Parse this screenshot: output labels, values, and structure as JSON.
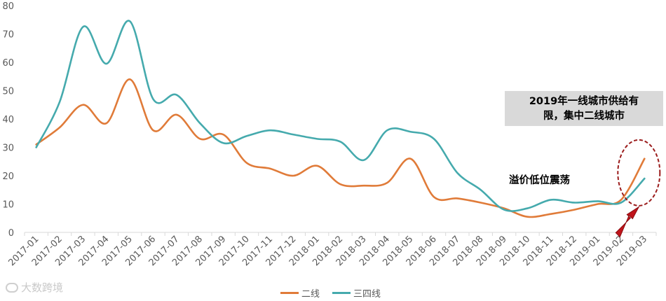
{
  "chart_data": {
    "type": "line",
    "categories": [
      "2017-01",
      "2017-02",
      "2017-03",
      "2017-04",
      "2017-05",
      "2017-06",
      "2017-07",
      "2017-08",
      "2017-09",
      "2017-10",
      "2017-11",
      "2017-12",
      "2018-01",
      "2018-02",
      "2018-03",
      "2018-04",
      "2018-05",
      "2018-06",
      "2018-07",
      "2018-08",
      "2018-09",
      "2018-10",
      "2018-11",
      "2018-12",
      "2019-01",
      "2019-02",
      "2019-03"
    ],
    "series": [
      {
        "name": "二线",
        "color": "#e07b39",
        "values": [
          31,
          37,
          45,
          38.5,
          54,
          36,
          41.5,
          33,
          34.5,
          24.5,
          22.5,
          20,
          23.5,
          17,
          16.5,
          17.5,
          26,
          12.5,
          12,
          10.5,
          8.5,
          5.5,
          6.5,
          8,
          10,
          11.5,
          26
        ]
      },
      {
        "name": "三四线",
        "color": "#45aaad",
        "values": [
          30,
          46,
          72.5,
          59.5,
          74.5,
          47,
          48.5,
          38.5,
          31.5,
          34,
          36,
          34.5,
          33,
          32,
          25.5,
          36,
          35.5,
          33,
          21,
          15,
          8,
          8.5,
          11.5,
          10.5,
          11,
          10.5,
          19
        ]
      }
    ],
    "ylim": [
      0,
      80
    ],
    "yticks": [
      0,
      10,
      20,
      30,
      40,
      50,
      60,
      70,
      80
    ],
    "grid": false,
    "legend_position": "bottom"
  },
  "annotations": {
    "box_line1": "2019年一线城市供给有",
    "box_line2": "限，集中二线城市",
    "plain": "溢价低位震荡"
  },
  "watermark": "大数跨境",
  "arrow_color": "#c0141b",
  "circle_color": "#9b1c1c"
}
